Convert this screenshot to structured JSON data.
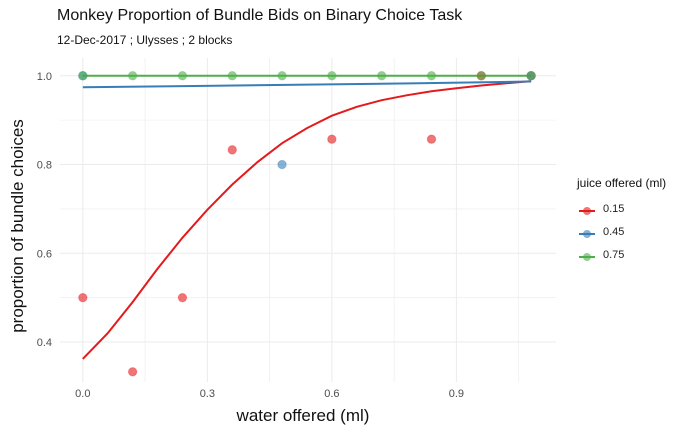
{
  "chart_data": {
    "type": "scatter",
    "title": "Monkey Proportion of Bundle Bids on Binary Choice Task",
    "subtitle": "12-Dec-2017 ; Ulysses ; 2 blocks",
    "xlabel": "water offered (ml)",
    "ylabel": "proportion of bundle choices",
    "xlim": [
      -0.055,
      1.14
    ],
    "ylim": [
      0.31,
      1.04
    ],
    "x_ticks": [
      0.0,
      0.3,
      0.6,
      0.9
    ],
    "x_tick_labels": [
      "0.0",
      "0.3",
      "0.6",
      "0.9"
    ],
    "y_ticks": [
      0.4,
      0.6,
      0.8,
      1.0
    ],
    "y_tick_labels": [
      "0.4",
      "0.6",
      "0.8",
      "1.0"
    ],
    "grid": true,
    "legend": {
      "title": "juice offered (ml)",
      "position": "right"
    },
    "series": [
      {
        "name": "0.15",
        "color": "#e41a1c",
        "points": [
          [
            0.0,
            0.5
          ],
          [
            0.12,
            0.333
          ],
          [
            0.24,
            0.5
          ],
          [
            0.36,
            0.833
          ],
          [
            0.6,
            0.857
          ],
          [
            0.84,
            0.857
          ],
          [
            0.96,
            1.0
          ],
          [
            1.08,
            1.0
          ]
        ],
        "fit": [
          [
            0.0,
            0.362
          ],
          [
            0.06,
            0.42
          ],
          [
            0.12,
            0.49
          ],
          [
            0.18,
            0.565
          ],
          [
            0.24,
            0.635
          ],
          [
            0.3,
            0.698
          ],
          [
            0.36,
            0.755
          ],
          [
            0.42,
            0.805
          ],
          [
            0.48,
            0.848
          ],
          [
            0.54,
            0.882
          ],
          [
            0.6,
            0.91
          ],
          [
            0.66,
            0.93
          ],
          [
            0.72,
            0.945
          ],
          [
            0.78,
            0.956
          ],
          [
            0.84,
            0.965
          ],
          [
            0.9,
            0.972
          ],
          [
            0.96,
            0.978
          ],
          [
            1.02,
            0.983
          ],
          [
            1.08,
            0.988
          ]
        ]
      },
      {
        "name": "0.45",
        "color": "#377eb8",
        "points": [
          [
            0.0,
            1.0
          ],
          [
            0.48,
            0.8
          ],
          [
            1.08,
            1.0
          ]
        ],
        "fit": [
          [
            0.0,
            0.974
          ],
          [
            0.27,
            0.977
          ],
          [
            0.54,
            0.98
          ],
          [
            0.81,
            0.983
          ],
          [
            1.08,
            0.987
          ]
        ]
      },
      {
        "name": "0.75",
        "color": "#4daf4a",
        "points": [
          [
            0.0,
            1.0
          ],
          [
            0.12,
            1.0
          ],
          [
            0.24,
            1.0
          ],
          [
            0.36,
            1.0
          ],
          [
            0.48,
            1.0
          ],
          [
            0.6,
            1.0
          ],
          [
            0.72,
            1.0
          ],
          [
            0.84,
            1.0
          ],
          [
            0.96,
            1.0
          ],
          [
            1.08,
            1.0
          ]
        ],
        "fit": [
          [
            0.0,
            1.0
          ],
          [
            1.08,
            1.0
          ]
        ]
      }
    ]
  }
}
